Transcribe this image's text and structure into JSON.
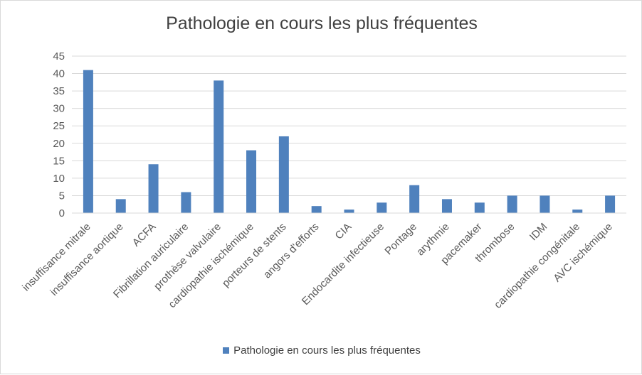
{
  "chart_data": {
    "type": "bar",
    "title": "Pathologie en cours les plus fréquentes",
    "categories": [
      "insuffisance mitrale",
      "insuffisance aortique",
      "ACFA",
      "Fibrillation auriculaire",
      "prothèse valvulaire",
      "cardiopathie ischémique",
      "porteurs de stents",
      "angors d'efforts",
      "CIA",
      "Endocardite infectieuse",
      "Pontage",
      "arythmie",
      "pacemaker",
      "thrombose",
      "IDM",
      "cardiopathie congénitale",
      "AVC ischémique"
    ],
    "series": [
      {
        "name": "Pathologie en cours les plus fréquentes",
        "values": [
          41,
          4,
          14,
          6,
          38,
          18,
          22,
          2,
          1,
          3,
          8,
          4,
          3,
          5,
          5,
          1,
          5
        ],
        "color": "#4f81bd"
      }
    ],
    "ylim": [
      0,
      45
    ],
    "ytick_step": 5,
    "grid": true,
    "legend_position": "bottom"
  }
}
